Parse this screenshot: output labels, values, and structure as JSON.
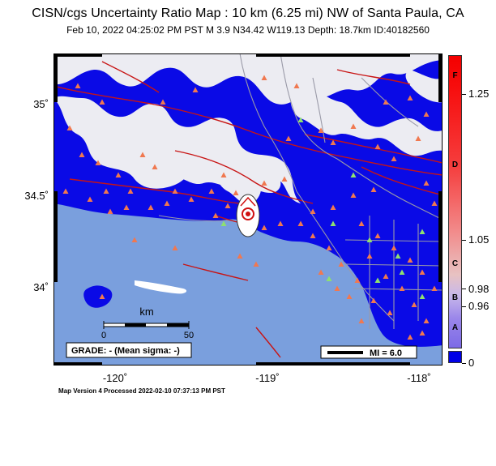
{
  "header": {
    "title": "CISN/cgs Uncertainty Ratio Map : 10 km (6.25 mi) NW of Santa Paula, CA",
    "subtitle": "Feb 10, 2022 04:25:02 PM PST    M 3.9    N34.42 W119.13    Depth: 18.7km    ID:40182560"
  },
  "map": {
    "lat_labels": [
      "35˚",
      "34.5˚",
      "34˚"
    ],
    "lon_labels": [
      "-120˚",
      "-119˚",
      "-118˚"
    ],
    "scale_bar": {
      "unit": "km",
      "min_label": "0",
      "max_label": "50"
    },
    "grade_box": "GRADE: - (Mean sigma: -)",
    "mi_legend": "MI = 6.0",
    "colors": {
      "ocean": "#7a9fdd",
      "land_high": "#0a0ae6",
      "land_low": "#ececf2",
      "fault": "#c81414",
      "road": "#9a9aa8",
      "station_orange": "#f07850",
      "station_green": "#8ee070"
    }
  },
  "colorbar": {
    "letters": [
      "F",
      "D",
      "C",
      "B",
      "A"
    ],
    "values": [
      "1.25",
      "1.05",
      "0.98",
      "0.96",
      "0"
    ]
  },
  "footer": "Map Version 4 Processed 2022-02-10 07:37:13 PM PST"
}
